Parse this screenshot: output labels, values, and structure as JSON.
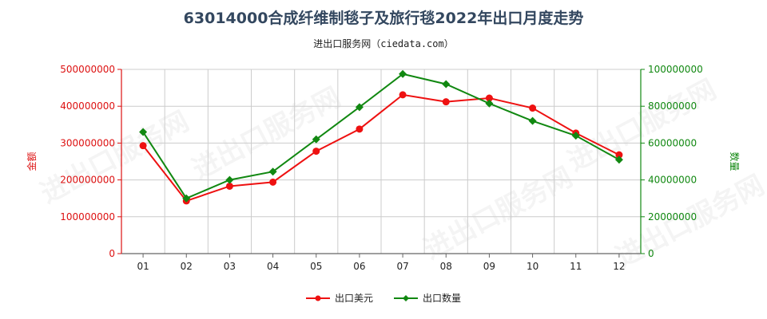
{
  "title": "63014000合成纤维制毯子及旅行毯2022年出口月度走势",
  "subtitle": "进出口服务网（ciedata.com）",
  "watermark_text": "进出口服务网",
  "colors": {
    "usd": "#ee1111",
    "qty": "#118811",
    "axis_left": "#dd1111",
    "axis_right": "#118811",
    "grid": "#cccccc"
  },
  "chart_data": {
    "type": "line",
    "categories": [
      "01",
      "02",
      "03",
      "04",
      "05",
      "06",
      "07",
      "08",
      "09",
      "10",
      "11",
      "12"
    ],
    "left_axis": {
      "label": "金额",
      "min": 0,
      "max": 500000000,
      "ticks": [
        "0",
        "100000000",
        "200000000",
        "300000000",
        "400000000",
        "500000000"
      ]
    },
    "right_axis": {
      "label": "数量",
      "min": 0,
      "max": 100000000,
      "ticks": [
        "0",
        "20000000",
        "40000000",
        "60000000",
        "80000000",
        "100000000"
      ]
    },
    "series": [
      {
        "name": "出口美元",
        "axis": "left",
        "color": "#ee1111",
        "marker": "circle",
        "values": [
          293000000,
          143000000,
          183000000,
          194000000,
          278000000,
          338000000,
          431000000,
          412000000,
          422000000,
          395000000,
          327000000,
          268000000
        ]
      },
      {
        "name": "出口数量",
        "axis": "right",
        "color": "#118811",
        "marker": "diamond",
        "values": [
          66000000,
          30000000,
          40000000,
          44500000,
          62000000,
          79500000,
          97500000,
          92000000,
          81500000,
          72000000,
          64000000,
          51000000
        ]
      }
    ],
    "grid": true,
    "legend": "bottom"
  }
}
